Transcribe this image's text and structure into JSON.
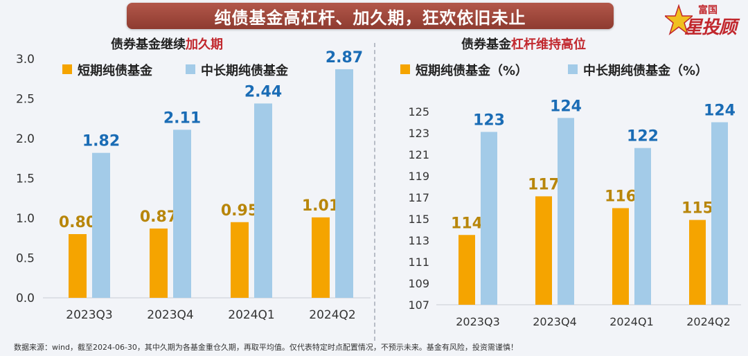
{
  "banner": {
    "title": "纯债基金高杠杆、加久期，狂欢依旧未止"
  },
  "logo": {
    "top": "富国",
    "main": "星投顾"
  },
  "left_panel": {
    "title_pre": "债券基金继续",
    "title_hl": "加久期"
  },
  "right_panel": {
    "title_pre": "债券基金",
    "title_hl": "杠杆维持高位"
  },
  "footer": {
    "text": "数据来源：wind，截至2024-06-30，其中久期为各基金重仓久期，再取平均值。仅代表特定时点配置情况，不预示未来。基金有风险，投资需谨慎！"
  },
  "colors": {
    "short": "#f5a400",
    "long": "#a3cbe8",
    "short_label": "#b8860b",
    "long_label": "#1a6cb5",
    "banner": "#a04a3e",
    "highlight": "#c1272d"
  },
  "chart_data": [
    {
      "type": "bar",
      "title": "债券基金继续加久期",
      "categories": [
        "2023Q3",
        "2023Q4",
        "2024Q1",
        "2024Q2"
      ],
      "series": [
        {
          "name": "短期纯债基金",
          "values": [
            0.8,
            0.87,
            0.95,
            1.01
          ],
          "labels": [
            "0.80",
            "0.87",
            "0.95",
            "1.01"
          ]
        },
        {
          "name": "中长期纯债基金",
          "values": [
            1.82,
            2.11,
            2.44,
            2.87
          ],
          "labels": [
            "1.82",
            "2.11",
            "2.44",
            "2.87"
          ]
        }
      ],
      "ylim": [
        0,
        3.0
      ],
      "yticks": [
        "0.0",
        "0.5",
        "1.0",
        "1.5",
        "2.0",
        "2.5",
        "3.0"
      ],
      "ytick_values": [
        0,
        0.5,
        1.0,
        1.5,
        2.0,
        2.5,
        3.0
      ],
      "legend": "top",
      "grid": false
    },
    {
      "type": "bar",
      "title": "债券基金杠杆维持高位",
      "categories": [
        "2023Q3",
        "2023Q4",
        "2024Q1",
        "2024Q2"
      ],
      "series": [
        {
          "name": "短期纯债基金（%）",
          "values": [
            113.5,
            117.1,
            116.0,
            114.9
          ],
          "labels": [
            "114",
            "117",
            "116",
            "115"
          ]
        },
        {
          "name": "中长期纯债基金（%）",
          "values": [
            123.1,
            124.4,
            121.6,
            124.0
          ],
          "labels": [
            "123",
            "124",
            "122",
            "124"
          ]
        }
      ],
      "ylim": [
        107,
        125
      ],
      "yticks": [
        "107",
        "109",
        "111",
        "113",
        "115",
        "117",
        "119",
        "121",
        "123",
        "125"
      ],
      "ytick_values": [
        107,
        109,
        111,
        113,
        115,
        117,
        119,
        121,
        123,
        125
      ],
      "legend": "top",
      "grid": false
    }
  ]
}
